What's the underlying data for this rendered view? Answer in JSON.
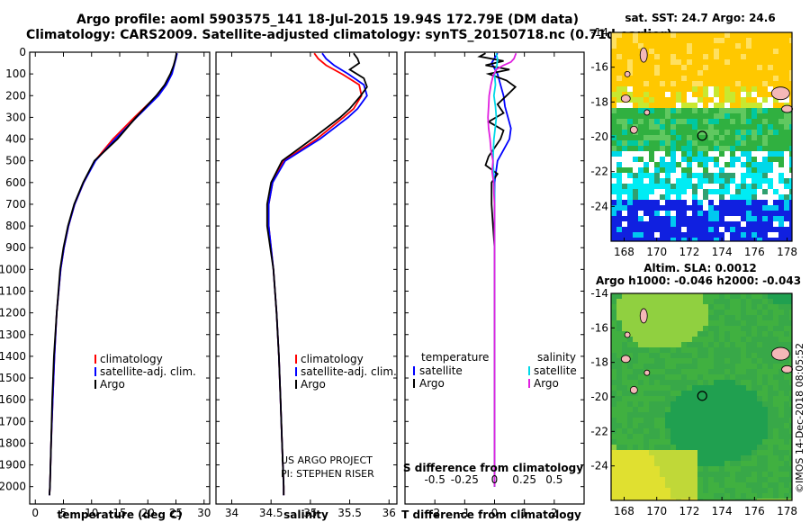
{
  "header": {
    "line1": "Argo profile: aoml 5903575_141 18-Jul-2015 19.94S 172.79E (DM data)",
    "line2": "Climatology: CARS2009. Satellite-adjusted climatology: synTS_20150718.nc (0.71d earlier)"
  },
  "footer_credit": {
    "line1": "US ARGO PROJECT",
    "line2": "PI: STEPHEN RISER"
  },
  "watermark": "©IMOS 14-Dec-2018 08:05:52",
  "colors": {
    "climatology": "#ff0000",
    "satellite": "#0000ff",
    "argo": "#000000",
    "salinity_satellite": "#00d8e8",
    "salinity_argo": "#e020e0"
  },
  "chart_data": [
    {
      "type": "line",
      "id": "temperature",
      "xlabel": "temperature (deg C)",
      "ylabel": "",
      "xlim": [
        -1,
        31
      ],
      "ylim": [
        2080,
        0
      ],
      "xticks": [
        0,
        5,
        10,
        15,
        20,
        25,
        30
      ],
      "xtick_labels": [
        "0",
        "5",
        "10",
        "15",
        "20",
        "25",
        "30"
      ],
      "yticks": [
        0,
        100,
        200,
        300,
        400,
        500,
        600,
        700,
        800,
        900,
        1000,
        1100,
        1200,
        1300,
        1400,
        1500,
        1600,
        1700,
        1800,
        1900,
        2000
      ],
      "ytick_labels": [
        "0",
        "100",
        "200",
        "300",
        "400",
        "500",
        "600",
        "700",
        "800",
        "900",
        "1000",
        "1100",
        "1200",
        "1300",
        "1400",
        "1500",
        "1600",
        "1700",
        "1800",
        "1900",
        "2000"
      ],
      "legend": [
        "climatology",
        "satellite-adj. clim.",
        "Argo"
      ],
      "series": [
        {
          "name": "climatology",
          "color": "#ff0000",
          "depth": [
            5,
            30,
            60,
            100,
            150,
            200,
            300,
            400,
            500,
            600,
            700,
            800,
            900,
            1000,
            1200,
            1400,
            1600,
            1800,
            2000,
            2040
          ],
          "values": [
            25.1,
            25.0,
            24.6,
            24.2,
            23.1,
            21.6,
            17.6,
            13.8,
            10.6,
            8.6,
            7.0,
            5.9,
            5.1,
            4.5,
            3.8,
            3.4,
            3.1,
            2.8,
            2.6,
            2.5
          ]
        },
        {
          "name": "satellite-adj. clim.",
          "color": "#0000ff",
          "depth": [
            5,
            30,
            60,
            100,
            150,
            200,
            300,
            400,
            500,
            600,
            700,
            800,
            900,
            1000,
            1200,
            1400,
            1600,
            1800,
            2000,
            2040
          ],
          "values": [
            25.2,
            25.0,
            24.7,
            24.3,
            23.3,
            21.9,
            18.0,
            14.2,
            10.7,
            8.6,
            7.0,
            5.9,
            5.1,
            4.5,
            3.8,
            3.4,
            3.1,
            2.8,
            2.6,
            2.5
          ]
        },
        {
          "name": "Argo",
          "color": "#000000",
          "depth": [
            5,
            30,
            60,
            100,
            150,
            200,
            300,
            400,
            500,
            600,
            700,
            800,
            900,
            1000,
            1200,
            1400,
            1600,
            1800,
            2000,
            2040
          ],
          "values": [
            25.1,
            24.9,
            24.6,
            24.0,
            23.0,
            21.5,
            17.9,
            14.6,
            10.5,
            8.5,
            6.9,
            5.8,
            5.0,
            4.4,
            3.8,
            3.3,
            3.0,
            2.8,
            2.6,
            2.5
          ]
        }
      ]
    },
    {
      "type": "line",
      "id": "salinity",
      "xlabel": "salinity",
      "ylabel": "",
      "xlim": [
        33.8,
        36.1
      ],
      "ylim": [
        2080,
        0
      ],
      "xticks": [
        34,
        34.5,
        35,
        35.5,
        36
      ],
      "xtick_labels": [
        "34",
        "34.5",
        "35",
        "35.5",
        "36"
      ],
      "legend": [
        "climatology",
        "satellite-adj. clim.",
        "Argo"
      ],
      "series": [
        {
          "name": "climatology",
          "color": "#ff0000",
          "depth": [
            5,
            30,
            60,
            100,
            150,
            200,
            260,
            300,
            400,
            500,
            600,
            700,
            800,
            900,
            1000,
            1200,
            1400,
            1600,
            1800,
            2000,
            2040
          ],
          "values": [
            35.05,
            35.1,
            35.2,
            35.4,
            35.62,
            35.65,
            35.55,
            35.42,
            35.08,
            34.66,
            34.52,
            34.47,
            34.47,
            34.5,
            34.53,
            34.57,
            34.6,
            34.62,
            34.64,
            34.66,
            34.66
          ]
        },
        {
          "name": "satellite-adj. clim.",
          "color": "#0000ff",
          "depth": [
            5,
            30,
            60,
            100,
            150,
            200,
            260,
            300,
            400,
            500,
            600,
            700,
            800,
            900,
            1000,
            1200,
            1400,
            1600,
            1800,
            2000,
            2040
          ],
          "values": [
            35.15,
            35.2,
            35.3,
            35.48,
            35.68,
            35.72,
            35.6,
            35.48,
            35.12,
            34.68,
            34.52,
            34.47,
            34.47,
            34.5,
            34.53,
            34.57,
            34.6,
            34.62,
            34.64,
            34.66,
            34.66
          ]
        },
        {
          "name": "Argo",
          "color": "#000000",
          "depth": [
            5,
            30,
            50,
            80,
            120,
            160,
            200,
            260,
            300,
            400,
            500,
            600,
            700,
            800,
            900,
            1000,
            1200,
            1400,
            1600,
            1800,
            2000,
            2040
          ],
          "values": [
            35.55,
            35.6,
            35.62,
            35.5,
            35.68,
            35.72,
            35.64,
            35.5,
            35.38,
            35.02,
            34.64,
            34.5,
            34.45,
            34.45,
            34.49,
            34.53,
            34.57,
            34.6,
            34.62,
            34.64,
            34.66,
            34.66
          ]
        }
      ]
    },
    {
      "type": "line",
      "id": "difference",
      "xlabel": "T difference from climatology",
      "xlabel_top": "S difference from climatology",
      "xlim": [
        -3,
        3
      ],
      "ylim": [
        2080,
        0
      ],
      "xticks": [
        -2,
        -1,
        0,
        1,
        2
      ],
      "xtick_labels": [
        "-2",
        "-1",
        "0",
        "1",
        "2"
      ],
      "sticks": [
        -0.5,
        -0.25,
        0,
        0.25,
        0.5
      ],
      "stick_labels": [
        "-0.5",
        "-0.25",
        "0",
        "0.25",
        "0.5"
      ],
      "legend_temperature_title": "temperature",
      "legend_salinity_title": "salinity",
      "legend_temperature": [
        "satellite",
        "Argo"
      ],
      "legend_salinity": [
        "satellite",
        "Argo"
      ],
      "series": [
        {
          "name": "T satellite",
          "color": "#0000ff",
          "depth": [
            5,
            50,
            100,
            150,
            200,
            250,
            300,
            350,
            400,
            450,
            500,
            600,
            700,
            800,
            900,
            1000,
            1200,
            1400,
            1600,
            1800,
            2000
          ],
          "values": [
            0.1,
            -0.1,
            0.1,
            0.2,
            0.3,
            0.35,
            0.45,
            0.55,
            0.5,
            0.3,
            0.1,
            0.0,
            0.0,
            0.0,
            0.0,
            0.0,
            0.0,
            0.0,
            0.0,
            0.0,
            0.0
          ]
        },
        {
          "name": "T Argo",
          "color": "#000000",
          "depth": [
            5,
            20,
            40,
            60,
            80,
            100,
            130,
            160,
            200,
            240,
            280,
            320,
            360,
            400,
            440,
            480,
            520,
            560,
            600,
            700,
            800,
            900,
            1000,
            1200,
            1400,
            1600,
            1800,
            2000
          ],
          "values": [
            -0.3,
            -0.5,
            0.3,
            -0.3,
            0.5,
            -0.2,
            0.4,
            0.7,
            0.4,
            0.1,
            0.3,
            -0.2,
            0.3,
            0.2,
            0.0,
            -0.2,
            -0.3,
            0.1,
            -0.1,
            -0.1,
            -0.05,
            0.0,
            0.0,
            0.0,
            0.0,
            0.0,
            0.0,
            0.0
          ]
        },
        {
          "name": "S satellite",
          "color": "#00d8e8",
          "depth": [
            5,
            30,
            60,
            100,
            150,
            200,
            250,
            300,
            350,
            400,
            450,
            500,
            550,
            600,
            650,
            700,
            800,
            1000,
            1400,
            1800,
            2000
          ],
          "values": [
            0.05,
            0.1,
            0.08,
            0.0,
            0.03,
            -0.02,
            0.03,
            0.06,
            0.02,
            -0.02,
            -0.04,
            -0.05,
            -0.03,
            -0.02,
            0.0,
            0.0,
            0.0,
            0.0,
            0.0,
            0.0,
            0.0
          ]
        },
        {
          "name": "S Argo",
          "color": "#e020e0",
          "depth": [
            5,
            30,
            45,
            60,
            80,
            110,
            150,
            200,
            250,
            300,
            350,
            400,
            450,
            500,
            550,
            600,
            650,
            700,
            800,
            1000,
            1400,
            1800,
            2000
          ],
          "values": [
            0.72,
            0.65,
            0.55,
            0.3,
            0.05,
            -0.05,
            -0.12,
            -0.18,
            -0.2,
            -0.22,
            -0.2,
            -0.15,
            -0.12,
            -0.05,
            -0.08,
            -0.03,
            -0.02,
            0.0,
            0.0,
            0.0,
            0.0,
            0.0,
            0.0
          ]
        }
      ]
    },
    {
      "type": "heatmap",
      "id": "sst_map",
      "title": "sat. SST: 24.7 Argo: 24.6",
      "xlim": [
        167.2,
        178.3
      ],
      "ylim": [
        -26,
        -14
      ],
      "xticks": [
        168,
        170,
        172,
        174,
        176,
        178
      ],
      "xtick_labels": [
        "168",
        "170",
        "172",
        "174",
        "176",
        "178"
      ],
      "yticks": [
        -14,
        -16,
        -18,
        -20,
        -22,
        -24
      ],
      "ytick_labels": [
        "-14",
        "-16",
        "-18",
        "-20",
        "-22",
        "-24"
      ],
      "float_position": [
        172.79,
        -19.94
      ]
    },
    {
      "type": "heatmap",
      "id": "sla_map",
      "title": "Altim. SLA: 0.0012",
      "subtitle": "Argo h1000: -0.046 h2000: -0.043",
      "xlim": [
        167.2,
        178.3
      ],
      "ylim": [
        -26,
        -14
      ],
      "xticks": [
        168,
        170,
        172,
        174,
        176,
        178
      ],
      "xtick_labels": [
        "168",
        "170",
        "172",
        "174",
        "176",
        "178"
      ],
      "yticks": [
        -14,
        -16,
        -18,
        -20,
        -22,
        -24
      ],
      "ytick_labels": [
        "-14",
        "-16",
        "-18",
        "-20",
        "-22",
        "-24"
      ],
      "float_position": [
        172.79,
        -19.94
      ]
    }
  ]
}
